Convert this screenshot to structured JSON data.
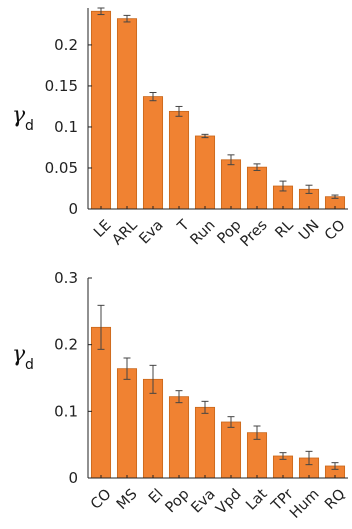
{
  "colors": {
    "bar": "#f08232",
    "bar_stroke": "#c8661a",
    "axis": "#222222",
    "error": "#444444"
  },
  "chart_data": [
    {
      "type": "bar",
      "ylabel_symbol": "γ",
      "ylabel_subscript": "d",
      "ylim": [
        0,
        0.245
      ],
      "yticks": [
        0,
        0.05,
        0.1,
        0.15,
        0.2
      ],
      "ytick_labels": [
        "0",
        "0.05",
        "0.1",
        "0.15",
        "0.2"
      ],
      "grid": false,
      "categories": [
        "LE",
        "ARL",
        "Eva",
        "T",
        "Run",
        "Pop",
        "Pres",
        "RL",
        "UN",
        "CO"
      ],
      "values": [
        0.241,
        0.232,
        0.137,
        0.119,
        0.089,
        0.06,
        0.051,
        0.028,
        0.024,
        0.015
      ],
      "error": [
        0.004,
        0.004,
        0.005,
        0.006,
        0.002,
        0.006,
        0.004,
        0.006,
        0.005,
        0.002
      ]
    },
    {
      "type": "bar",
      "ylabel_symbol": "γ",
      "ylabel_subscript": "d",
      "ylim": [
        0,
        0.3
      ],
      "yticks": [
        0,
        0.1,
        0.2,
        0.3
      ],
      "ytick_labels": [
        "0",
        "0.1",
        "0.2",
        "0.3"
      ],
      "grid": false,
      "categories": [
        "CO",
        "MS",
        "El",
        "Pop",
        "Eva",
        "Vpd",
        "Lat",
        "TPr",
        "Hum",
        "RQ"
      ],
      "values": [
        0.226,
        0.164,
        0.148,
        0.122,
        0.106,
        0.084,
        0.068,
        0.033,
        0.03,
        0.018
      ],
      "error": [
        0.033,
        0.016,
        0.021,
        0.009,
        0.009,
        0.008,
        0.01,
        0.005,
        0.01,
        0.005
      ]
    }
  ]
}
